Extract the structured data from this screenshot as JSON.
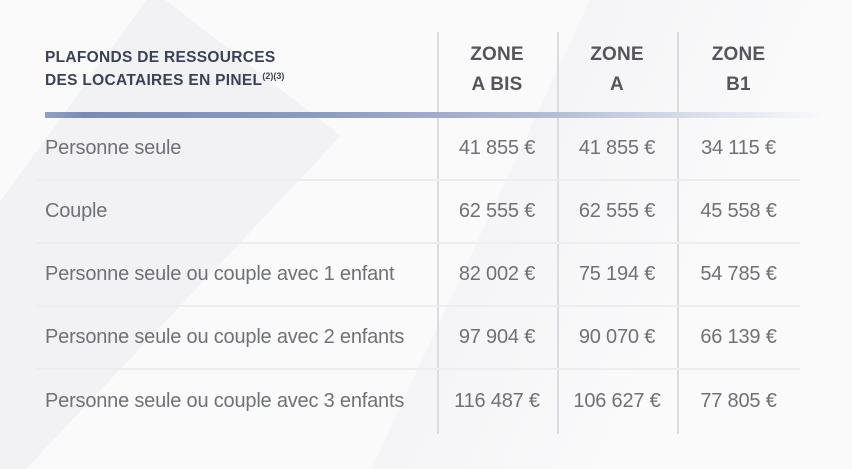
{
  "title": {
    "line1": "PLAFONDS DE RESSOURCES",
    "line2": "DES LOCATAIRES EN PINEL",
    "superscript": "(2)(3)"
  },
  "columns": [
    {
      "line1": "ZONE",
      "line2": "A BIS"
    },
    {
      "line1": "ZONE",
      "line2": "A"
    },
    {
      "line1": "ZONE",
      "line2": "B1"
    }
  ],
  "rows": [
    {
      "label": "Personne seule",
      "values": [
        "41 855 €",
        "41 855 €",
        "34 115 €"
      ]
    },
    {
      "label": "Couple",
      "values": [
        "62 555 €",
        "62 555 €",
        "45 558 €"
      ]
    },
    {
      "label": "Personne seule ou couple avec 1 enfant",
      "values": [
        "82 002 €",
        "75 194 €",
        "54 785 €"
      ]
    },
    {
      "label": "Personne seule ou couple avec 2 enfants",
      "values": [
        "97 904 €",
        "90 070 €",
        "66 139 €"
      ]
    },
    {
      "label": "Personne seule ou couple avec 3 enfants",
      "values": [
        "116 487 €",
        "106 627 €",
        "77 805 €"
      ]
    }
  ],
  "chart_data": {
    "type": "table",
    "title": "Plafonds de ressources des locataires en Pinel",
    "categories": [
      "Zone A bis",
      "Zone A",
      "Zone B1"
    ],
    "series": [
      {
        "name": "Personne seule",
        "values": [
          41855,
          41855,
          34115
        ]
      },
      {
        "name": "Couple",
        "values": [
          62555,
          62555,
          45558
        ]
      },
      {
        "name": "Personne seule ou couple avec 1 enfant",
        "values": [
          82002,
          75194,
          54785
        ]
      },
      {
        "name": "Personne seule ou couple avec 2 enfants",
        "values": [
          97904,
          90070,
          66139
        ]
      },
      {
        "name": "Personne seule ou couple avec 3 enfants",
        "values": [
          116487,
          106627,
          77805
        ]
      }
    ],
    "unit": "€"
  },
  "colors": {
    "title_text": "#3b4156",
    "header_text": "#54565c",
    "body_text": "#6f7176",
    "accent_bar": "#7b8cb0",
    "column_divider": "#dbdce1",
    "row_divider": "#ededf0",
    "background": "#fafafb",
    "background_wedge": "#f2f2f5"
  }
}
